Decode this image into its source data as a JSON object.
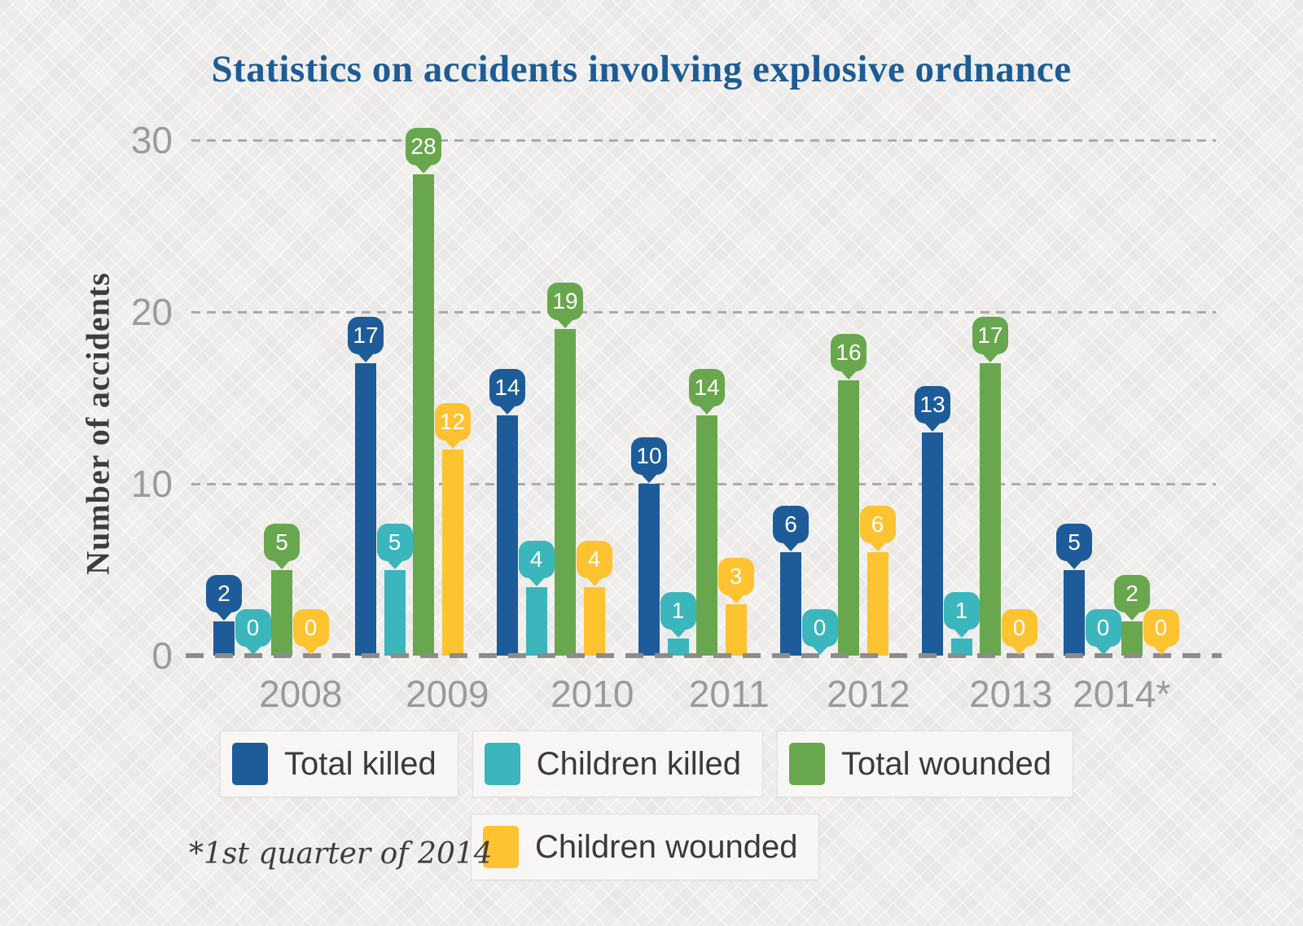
{
  "title": "Statistics on accidents involving explosive ordnance",
  "y_axis_title": "Number of accidents",
  "footnote": "*1st quarter of 2014",
  "colors": {
    "title_text": "#1d5c94",
    "grid": "#ababab",
    "baseline": "#8c8c8c",
    "tick_label": "#9b9b9b",
    "x_label": "#9a9a9a",
    "axis_title_text": "#3d3d3d",
    "badge_text": "#ffffff",
    "background": "#f0efed"
  },
  "chart_data": {
    "type": "bar",
    "title": "Statistics on accidents involving explosive ordnance",
    "xlabel": "",
    "ylabel": "Number of accidents",
    "categories": [
      "2008",
      "2009",
      "2010",
      "2011",
      "2012",
      "2013",
      "2014*"
    ],
    "series": [
      {
        "name": "Total killed",
        "color": "#1e5c99",
        "values": [
          2,
          17,
          14,
          10,
          6,
          13,
          5
        ]
      },
      {
        "name": "Children killed",
        "color": "#3ab6bc",
        "values": [
          0,
          5,
          4,
          1,
          0,
          1,
          0
        ]
      },
      {
        "name": "Total wounded",
        "color": "#69a74e",
        "values": [
          5,
          28,
          19,
          14,
          16,
          17,
          2
        ]
      },
      {
        "name": "Children wounded",
        "color": "#fdc330",
        "values": [
          0,
          12,
          4,
          3,
          6,
          0,
          0
        ]
      }
    ],
    "y_ticks": [
      0,
      10,
      20,
      30
    ],
    "ylim": [
      0,
      30
    ],
    "grid": "horizontal dashed",
    "legend_position": "bottom",
    "data_labels": "value badge above each bar",
    "footnote": "*1st quarter of 2014"
  },
  "legend": {
    "rows": [
      [
        "Total killed",
        "Children killed",
        "Total wounded"
      ],
      [
        "Children wounded"
      ]
    ]
  }
}
